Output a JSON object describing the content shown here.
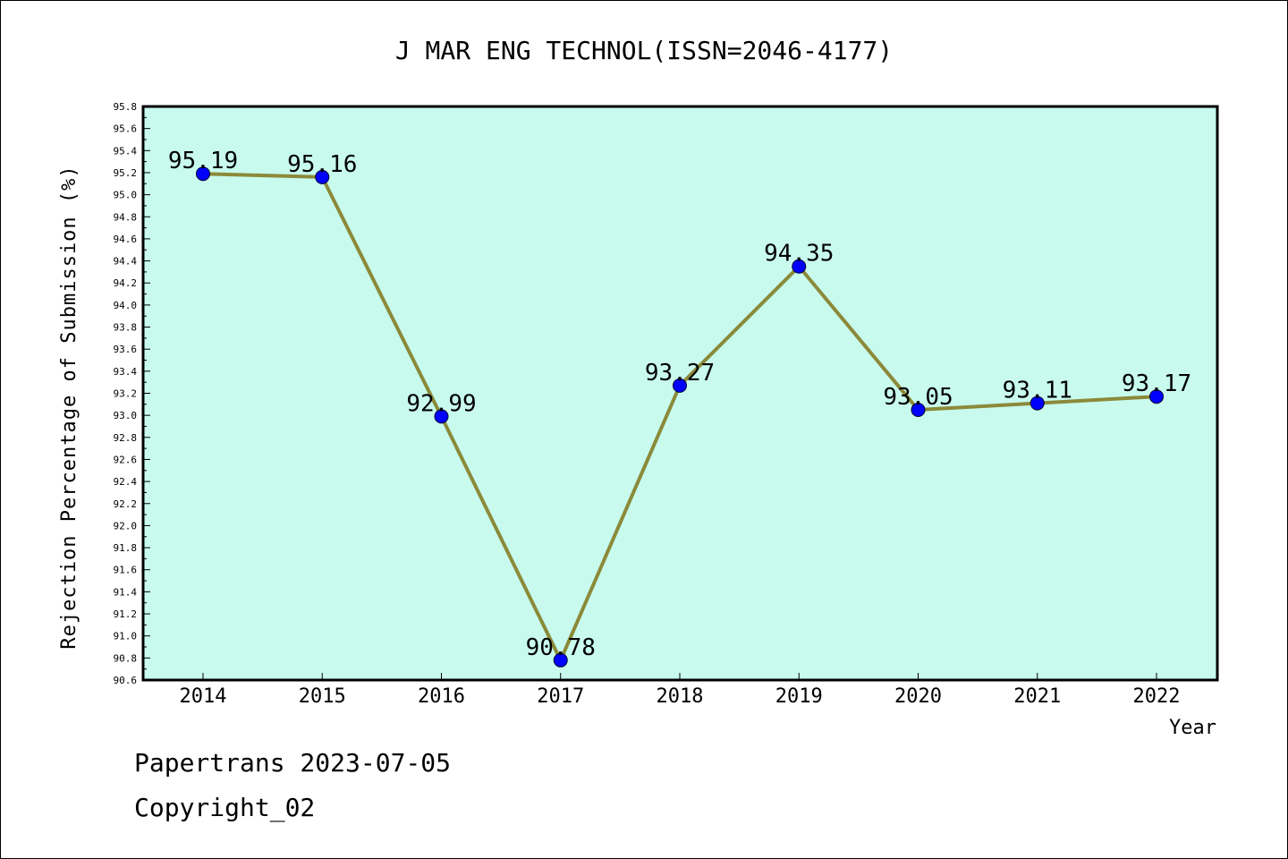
{
  "chart_data": {
    "type": "line",
    "title": "J MAR ENG TECHNOL(ISSN=2046-4177)",
    "xlabel": "Year",
    "ylabel": "Rejection Percentage of Submission (%)",
    "categories": [
      "2014",
      "2015",
      "2016",
      "2017",
      "2018",
      "2019",
      "2020",
      "2021",
      "2022"
    ],
    "series": [
      {
        "values": [
          95.19,
          95.16,
          92.99,
          90.78,
          93.27,
          94.35,
          93.05,
          93.11,
          93.17
        ],
        "labels": [
          "95.19",
          "95.16",
          "92.99",
          "90.78",
          "93.27",
          "94.35",
          "93.05",
          "93.11",
          "93.17"
        ]
      }
    ],
    "ylim": [
      90.6,
      95.8
    ],
    "yticks": [
      "90.6",
      "90.8",
      "91.0",
      "91.2",
      "91.4",
      "91.6",
      "91.8",
      "92.0",
      "92.2",
      "92.4",
      "92.6",
      "92.8",
      "93.0",
      "93.2",
      "93.4",
      "93.6",
      "93.8",
      "94.0",
      "94.2",
      "94.4",
      "94.6",
      "94.8",
      "95.0",
      "95.2",
      "95.4",
      "95.6",
      "95.8"
    ],
    "grid": false,
    "legend": "none",
    "colors": {
      "plot_background": "#c8fbee",
      "line": "#8b8a3a",
      "marker": "#0000ff"
    }
  },
  "footer": {
    "line1": "Papertrans 2023-07-05",
    "line2": "Copyright_02"
  }
}
